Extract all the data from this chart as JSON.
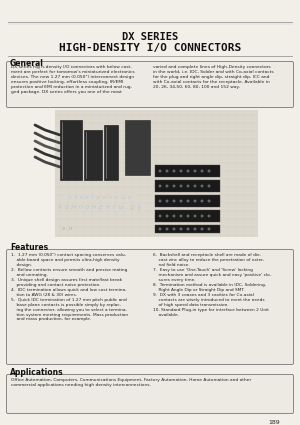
{
  "title_line1": "DX SERIES",
  "title_line2": "HIGH-DENSITY I/O CONNECTORS",
  "bg_color": "#f2efe9",
  "box_fill": "#edeae4",
  "section_general_title": "General",
  "general_text_left": "DX series hig h-density I/O connectors with below cost-\nment are perfect for tomorrow's miniaturized electronics\ndevices. The new 1.27 mm (0.050\") interconnect design\nensures positive locking, effortless coupling, IR/EMI\nprotection and EMI reduction in a miniaturized and rug-\nged package. DX series offers you one of the most",
  "general_text_right": "varied and complete lines of High-Density connectors\nin the world, i.e. IDC, Solder and with Co-axial contacts\nfor the plug and right angle dip, straight dip, ICC and\nwith Co-axial contacts for the receptacle. Available in\n20, 26, 34,50, 60, 80, 100 and 152 way.",
  "features_title": "Features",
  "feat_left": "1.  1.27 mm (0.050\") contact spacing conserves valu-\n    able board space and permits ultra-high density\n    design.\n2.  Bellow contacts ensure smooth and precise mating\n    and unmating.\n3.  Unique shell design assures first mate/last break\n    providing and contact noise protection.\n4.  IDC termination allows quick and low cost termina-\n    tion to AWG (28 & 30) wires.\n5.  Quick IDC termination of 1.27 mm pitch public and\n    base plane contacts is possible simply by replac-\n    ing the connector, allowing you to select a termina-\n    tion system meeting requirements. Mass production\n    and mass production, for example.",
  "feat_right": "6.  Backshell and receptacle shell are made of die-\n    cast zinc alloy to reduce the penetration of exter-\n    nal field noise.\n7.  Easy to use 'One-Touch' and 'Screw' locking\n    mechanism and assure quick and easy 'positive' clo-\n    sures every time.\n8.  Termination method is available in IDC, Soldering,\n    Right Angle Dip or Straight Dip and SMT.\n9.  DX with 3 coaxes and 3 cavities for Co-axial\n    contacts are wisely introduced to meet the needs\n    of high speed data transmission.\n10. Standard Plug-in type for interface between 2 Unit\n    available.",
  "applications_title": "Applications",
  "applications_text": "Office Automation, Computers, Communications Equipment, Factory Automation, Home Automation and other\ncommercial applications needing high density interconnections.",
  "page_number": "189",
  "title_color": "#111111",
  "text_color": "#222222",
  "border_color": "#777777",
  "header_line_color": "#aaaaaa",
  "watermark_color": "#aac4d8"
}
